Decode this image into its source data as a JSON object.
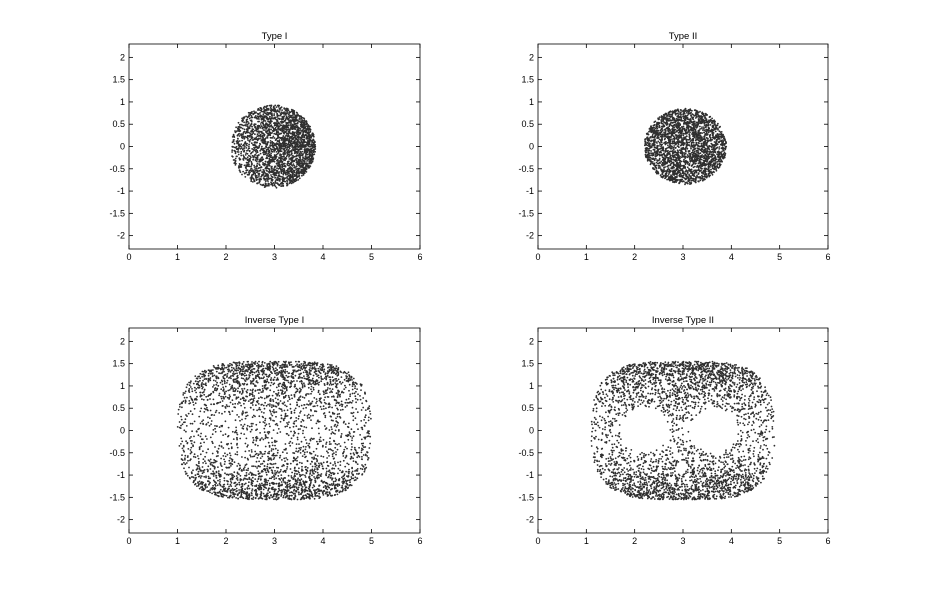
{
  "chart_data": [
    {
      "type": "scatter",
      "title": "Type I",
      "xlim": [
        0,
        6
      ],
      "ylim": [
        -2.3,
        2.3
      ],
      "xticks": [
        "0",
        "1",
        "2",
        "3",
        "4",
        "5",
        "6"
      ],
      "yticks": [
        "2",
        "1.5",
        "1",
        "0.5",
        "0",
        "-0.5",
        "-1",
        "-1.5",
        "-2"
      ],
      "grid": false,
      "point_color": "#2f2f2f",
      "series": [
        {
          "shape": "disk",
          "x_range": [
            2.1,
            3.85
          ],
          "y_range": [
            -0.93,
            0.93
          ],
          "center": [
            2.97,
            0.0
          ],
          "density": "higher toward right edge (x ≈ 3.8)"
        }
      ]
    },
    {
      "type": "scatter",
      "title": "Type II",
      "xlim": [
        0,
        6
      ],
      "ylim": [
        -2.3,
        2.3
      ],
      "xticks": [
        "0",
        "1",
        "2",
        "3",
        "4",
        "5",
        "6"
      ],
      "yticks": [
        "2",
        "1.5",
        "1",
        "0.5",
        "0",
        "-0.5",
        "-1",
        "-1.5",
        "-2"
      ],
      "grid": false,
      "point_color": "#2f2f2f",
      "series": [
        {
          "shape": "ellipse",
          "x_range": [
            2.2,
            3.9
          ],
          "y_range": [
            -0.85,
            0.85
          ],
          "center": [
            3.05,
            0.0
          ],
          "density": "uniform"
        }
      ]
    },
    {
      "type": "scatter",
      "title": "Inverse Type I",
      "xlim": [
        0,
        6
      ],
      "ylim": [
        -2.3,
        2.3
      ],
      "xticks": [
        "0",
        "1",
        "2",
        "3",
        "4",
        "5",
        "6"
      ],
      "yticks": [
        "2",
        "1.5",
        "1",
        "0.5",
        "0",
        "-0.5",
        "-1",
        "-1.5",
        "-2"
      ],
      "grid": false,
      "point_color": "#2f2f2f",
      "series": [
        {
          "shape": "rounded-rectangle",
          "x_range": [
            1.0,
            5.0
          ],
          "y_range": [
            -1.55,
            1.55
          ],
          "density": "dense near top and bottom edges, sparse in the middle"
        }
      ]
    },
    {
      "type": "scatter",
      "title": "Inverse Type II",
      "xlim": [
        0,
        6
      ],
      "ylim": [
        -2.3,
        2.3
      ],
      "xticks": [
        "0",
        "1",
        "2",
        "3",
        "4",
        "5",
        "6"
      ],
      "yticks": [
        "2",
        "1.5",
        "1",
        "0.5",
        "0",
        "-0.5",
        "-1",
        "-1.5",
        "-2"
      ],
      "grid": false,
      "point_color": "#2f2f2f",
      "series": [
        {
          "shape": "rounded-rectangle",
          "x_range": [
            1.1,
            4.9
          ],
          "y_range": [
            -1.55,
            1.55
          ],
          "holes": [
            {
              "center": [
                2.2,
                0.0
              ],
              "radius": 0.5
            },
            {
              "center": [
                3.65,
                0.0
              ],
              "radius": 0.5
            }
          ],
          "density": "dense near top and bottom edges, two empty holes in the middle"
        }
      ]
    }
  ]
}
